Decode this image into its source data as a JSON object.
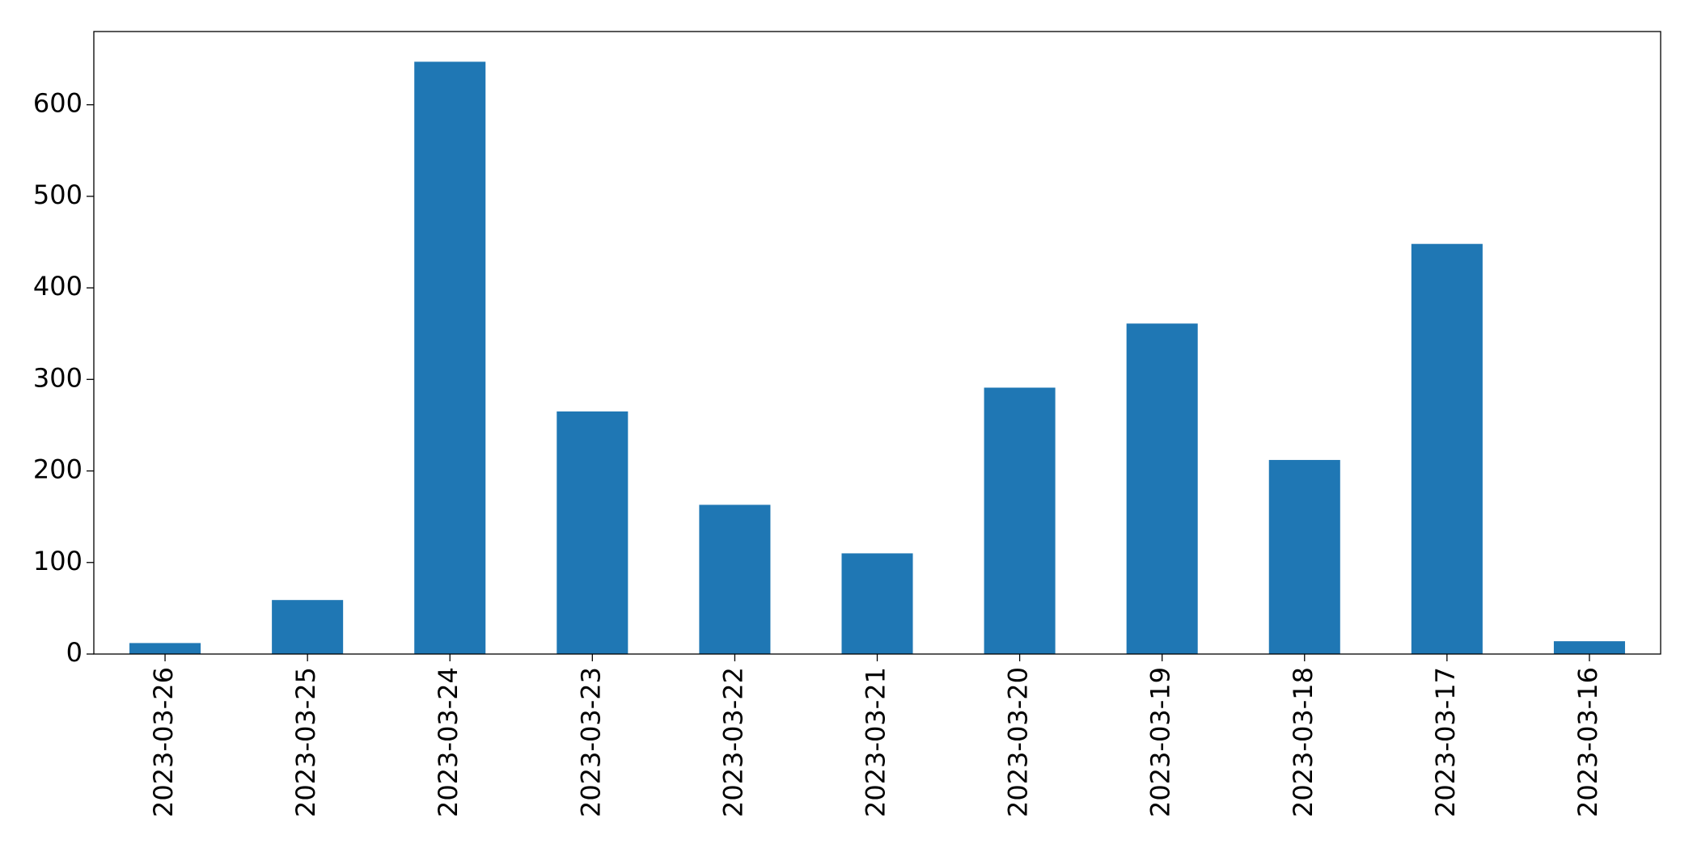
{
  "chart_data": {
    "type": "bar",
    "categories": [
      "2023-03-26",
      "2023-03-25",
      "2023-03-24",
      "2023-03-23",
      "2023-03-22",
      "2023-03-21",
      "2023-03-20",
      "2023-03-19",
      "2023-03-18",
      "2023-03-17",
      "2023-03-16"
    ],
    "values": [
      12,
      59,
      647,
      265,
      163,
      110,
      291,
      361,
      212,
      448,
      14
    ],
    "color": "#1f77b4",
    "ylim": [
      0,
      680
    ],
    "yticks": [
      0,
      100,
      200,
      300,
      400,
      500,
      600
    ],
    "grid": false
  }
}
